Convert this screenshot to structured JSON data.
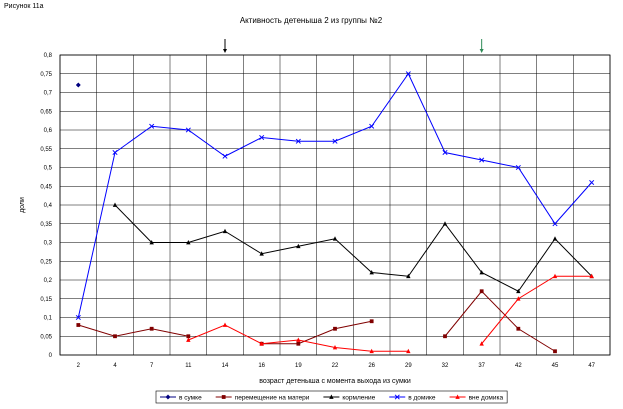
{
  "figure_label": "Рисунок 11а",
  "chart_data": {
    "type": "line",
    "title": "Активность детеныша 2 из группы №2",
    "xlabel": "возраст детеныша с момента выхода из сумки",
    "ylabel": "доли",
    "categories": [
      "2",
      "4",
      "7",
      "11",
      "14",
      "16",
      "19",
      "22",
      "26",
      "29",
      "32",
      "37",
      "42",
      "45",
      "47"
    ],
    "ylim": [
      0,
      0.8
    ],
    "yticks": [
      0,
      0.05,
      0.1,
      0.15,
      0.2,
      0.25,
      0.3,
      0.35,
      0.4,
      0.45,
      0.5,
      0.55,
      0.6,
      0.65,
      0.7,
      0.75,
      0.8
    ],
    "ytick_labels": [
      "0",
      "0,05",
      "0,1",
      "0,15",
      "0,2",
      "0,25",
      "0,3",
      "0,35",
      "0,4",
      "0,45",
      "0,5",
      "0,55",
      "0,6",
      "0,65",
      "0,7",
      "0,75",
      "0,8"
    ],
    "grid": true,
    "legend_position": "bottom",
    "series": [
      {
        "name": "в сумке",
        "color": "#000080",
        "marker": "diamond",
        "values": [
          0.72,
          null,
          null,
          null,
          null,
          null,
          null,
          null,
          null,
          null,
          null,
          null,
          null,
          null,
          null
        ]
      },
      {
        "name": "перемещение на матери",
        "color": "#800000",
        "marker": "square",
        "values": [
          0.08,
          0.05,
          0.07,
          0.05,
          null,
          0.03,
          0.03,
          0.07,
          0.09,
          null,
          0.05,
          0.17,
          0.07,
          0.01,
          null
        ]
      },
      {
        "name": "кормление",
        "color": "#000000",
        "marker": "triangle",
        "values": [
          null,
          0.4,
          0.3,
          0.3,
          0.33,
          0.27,
          0.29,
          0.31,
          0.22,
          0.21,
          0.35,
          0.22,
          0.17,
          0.31,
          0.21
        ]
      },
      {
        "name": "в домике",
        "color": "#0000ff",
        "marker": "x",
        "values": [
          0.1,
          0.54,
          0.61,
          0.6,
          0.53,
          0.58,
          0.57,
          0.57,
          0.61,
          0.75,
          0.54,
          0.52,
          0.5,
          0.35,
          0.46
        ]
      },
      {
        "name": "вне домика",
        "color": "#ff0000",
        "marker": "triangle",
        "values": [
          null,
          null,
          null,
          0.04,
          0.08,
          0.03,
          0.04,
          0.02,
          0.01,
          0.01,
          null,
          0.03,
          0.15,
          0.21,
          0.21
        ]
      }
    ],
    "annotations": [
      {
        "type": "arrow-down",
        "category": "14",
        "color": "#000000"
      },
      {
        "type": "arrow-down",
        "category": "37",
        "color": "#2e8b57"
      }
    ]
  }
}
